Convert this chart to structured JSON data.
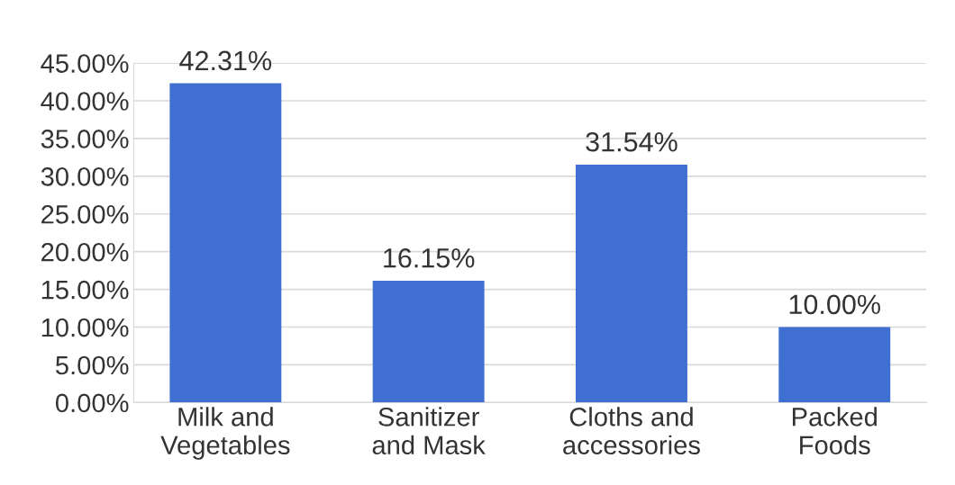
{
  "chart_data": {
    "type": "bar",
    "categories": [
      "Milk and\nVegetables",
      "Sanitizer\nand Mask",
      "Cloths and\naccessories",
      "Packed\nFoods"
    ],
    "values": [
      42.31,
      16.15,
      31.54,
      10.0
    ],
    "value_labels": [
      "42.31%",
      "16.15%",
      "31.54%",
      "10.00%"
    ],
    "color": "#3f6fd0",
    "ylim": [
      0,
      45
    ],
    "yticks": [
      {
        "value": 0,
        "label": "0.00%"
      },
      {
        "value": 5,
        "label": "5.00%"
      },
      {
        "value": 10,
        "label": "10.00%"
      },
      {
        "value": 15,
        "label": "15.00%"
      },
      {
        "value": 20,
        "label": "20.00%"
      },
      {
        "value": 25,
        "label": "25.00%"
      },
      {
        "value": 30,
        "label": "30.00%"
      },
      {
        "value": 35,
        "label": "35.00%"
      },
      {
        "value": 40,
        "label": "40.00%"
      },
      {
        "value": 45,
        "label": "45.00%"
      }
    ],
    "grid": "y"
  }
}
